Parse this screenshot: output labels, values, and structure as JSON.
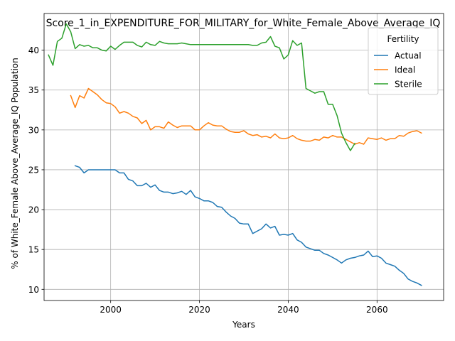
{
  "chart_data": {
    "type": "line",
    "title": "Score_1_in_EXPENDITURE_FOR_MILITARY_for_White_Female_Above_Average_IQ",
    "xlabel": "Years",
    "ylabel": "% of White_Female Above_Average_IQ Population",
    "xlim": [
      1985,
      2075
    ],
    "ylim": [
      8.6,
      44.6
    ],
    "x_ticks": [
      2000,
      2020,
      2040,
      2060
    ],
    "y_ticks": [
      10,
      15,
      20,
      25,
      30,
      35,
      40
    ],
    "grid": true,
    "legend": {
      "title": "Fertility",
      "placement": "top-right"
    },
    "series": [
      {
        "name": "Actual",
        "color": "#1f77b4",
        "x": [
          1992,
          1993,
          1994,
          1995,
          1996,
          1997,
          1998,
          1999,
          2000,
          2001,
          2002,
          2003,
          2004,
          2005,
          2006,
          2007,
          2008,
          2009,
          2010,
          2011,
          2012,
          2013,
          2014,
          2015,
          2016,
          2017,
          2018,
          2019,
          2020,
          2021,
          2022,
          2023,
          2024,
          2025,
          2026,
          2027,
          2028,
          2029,
          2030,
          2031,
          2032,
          2033,
          2034,
          2035,
          2036,
          2037,
          2038,
          2039,
          2040,
          2041,
          2042,
          2043,
          2044,
          2045,
          2046,
          2047,
          2048,
          2049,
          2050,
          2051,
          2052,
          2053,
          2054,
          2055,
          2056,
          2057,
          2058,
          2059,
          2060,
          2061,
          2062,
          2063,
          2064,
          2065,
          2066,
          2067,
          2068,
          2069,
          2070
        ],
        "values": [
          25.5,
          25.3,
          24.6,
          25.0,
          25.0,
          25.0,
          25.0,
          25.0,
          25.0,
          25.0,
          24.6,
          24.6,
          23.8,
          23.6,
          23.0,
          23.0,
          23.3,
          22.8,
          23.1,
          22.4,
          22.2,
          22.2,
          22.0,
          22.1,
          22.3,
          21.9,
          22.4,
          21.6,
          21.4,
          21.1,
          21.1,
          20.9,
          20.4,
          20.3,
          19.7,
          19.2,
          18.9,
          18.3,
          18.2,
          18.2,
          17.0,
          17.3,
          17.6,
          18.2,
          17.7,
          17.9,
          16.8,
          16.9,
          16.8,
          17.0,
          16.2,
          15.9,
          15.3,
          15.1,
          14.9,
          14.9,
          14.5,
          14.3,
          14.0,
          13.7,
          13.3,
          13.7,
          13.9,
          14.0,
          14.2,
          14.3,
          14.8,
          14.1,
          14.2,
          13.9,
          13.3,
          13.1,
          12.9,
          12.4,
          12.0,
          11.3,
          11.0,
          10.8,
          10.5
        ]
      },
      {
        "name": "Ideal",
        "color": "#ff7f0e",
        "x": [
          1991,
          1992,
          1993,
          1994,
          1995,
          1996,
          1997,
          1998,
          1999,
          2000,
          2001,
          2002,
          2003,
          2004,
          2005,
          2006,
          2007,
          2008,
          2009,
          2010,
          2011,
          2012,
          2013,
          2014,
          2015,
          2016,
          2017,
          2018,
          2019,
          2020,
          2021,
          2022,
          2023,
          2024,
          2025,
          2026,
          2027,
          2028,
          2029,
          2030,
          2031,
          2032,
          2033,
          2034,
          2035,
          2036,
          2037,
          2038,
          2039,
          2040,
          2041,
          2042,
          2043,
          2044,
          2045,
          2046,
          2047,
          2048,
          2049,
          2050,
          2051,
          2052,
          2053,
          2054,
          2055,
          2056,
          2057,
          2058,
          2059,
          2060,
          2061,
          2062,
          2063,
          2064,
          2065,
          2066,
          2067,
          2068,
          2069,
          2070
        ],
        "values": [
          34.3,
          32.8,
          34.3,
          34.0,
          35.2,
          34.8,
          34.4,
          33.8,
          33.4,
          33.3,
          32.9,
          32.1,
          32.3,
          32.1,
          31.7,
          31.5,
          30.8,
          31.2,
          30.0,
          30.4,
          30.4,
          30.2,
          31.0,
          30.6,
          30.3,
          30.5,
          30.5,
          30.5,
          30.0,
          30.0,
          30.5,
          30.9,
          30.6,
          30.5,
          30.5,
          30.1,
          29.8,
          29.7,
          29.7,
          29.9,
          29.5,
          29.3,
          29.4,
          29.1,
          29.2,
          29.0,
          29.5,
          29.0,
          28.9,
          29.0,
          29.3,
          28.9,
          28.7,
          28.6,
          28.6,
          28.8,
          28.7,
          29.1,
          29.0,
          29.3,
          29.1,
          29.1,
          28.8,
          28.5,
          28.2,
          28.4,
          28.2,
          29.0,
          28.9,
          28.8,
          29.0,
          28.7,
          28.9,
          28.9,
          29.3,
          29.2,
          29.6,
          29.8,
          29.9,
          29.6
        ]
      },
      {
        "name": "Sterile",
        "color": "#2ca02c",
        "x": [
          1986,
          1987,
          1988,
          1989,
          1990,
          1991,
          1992,
          1993,
          1994,
          1995,
          1996,
          1997,
          1998,
          1999,
          2000,
          2001,
          2002,
          2003,
          2004,
          2005,
          2006,
          2007,
          2008,
          2009,
          2010,
          2011,
          2012,
          2013,
          2014,
          2015,
          2016,
          2017,
          2018,
          2019,
          2020,
          2021,
          2022,
          2023,
          2024,
          2025,
          2026,
          2027,
          2028,
          2029,
          2030,
          2031,
          2032,
          2033,
          2034,
          2035,
          2036,
          2037,
          2038,
          2039,
          2040,
          2041,
          2042,
          2043,
          2044,
          2045,
          2046,
          2047,
          2048,
          2049,
          2050,
          2051,
          2052,
          2053,
          2054,
          2055
        ],
        "values": [
          39.4,
          38.1,
          41.1,
          41.5,
          43.3,
          42.3,
          40.2,
          40.7,
          40.5,
          40.6,
          40.3,
          40.3,
          40.0,
          39.9,
          40.5,
          40.1,
          40.6,
          41.0,
          41.0,
          41.0,
          40.6,
          40.4,
          41.0,
          40.7,
          40.6,
          41.1,
          40.9,
          40.8,
          40.8,
          40.8,
          40.9,
          40.8,
          40.7,
          40.7,
          40.7,
          40.7,
          40.7,
          40.7,
          40.7,
          40.7,
          40.7,
          40.7,
          40.7,
          40.7,
          40.7,
          40.7,
          40.6,
          40.6,
          40.9,
          41.0,
          41.7,
          40.5,
          40.3,
          38.9,
          39.4,
          41.2,
          40.6,
          40.9,
          35.2,
          34.9,
          34.6,
          34.8,
          34.8,
          33.2,
          33.2,
          31.8,
          29.6,
          28.4,
          27.4,
          28.3
        ]
      }
    ]
  }
}
